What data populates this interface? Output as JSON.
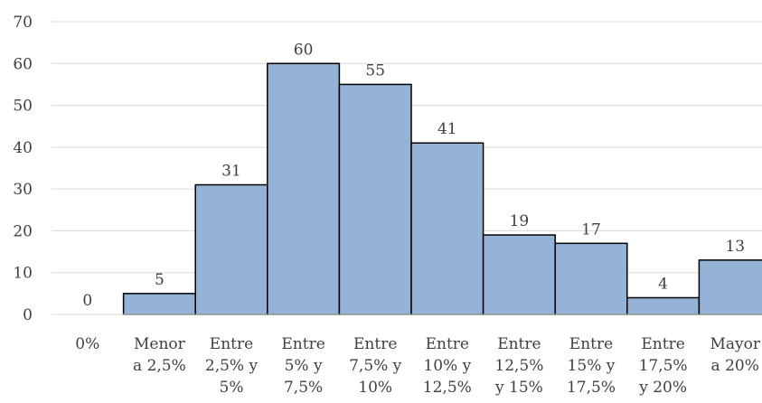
{
  "chart_data": {
    "type": "bar",
    "title": "",
    "xlabel": "",
    "ylabel": "",
    "ylim": [
      0,
      70
    ],
    "yticks": [
      0,
      10,
      20,
      30,
      40,
      50,
      60,
      70
    ],
    "grid": true,
    "legend": "none",
    "bar_color": "#95b3d7",
    "bar_border_color": "#000000",
    "categories": [
      [
        "0%"
      ],
      [
        "Menor",
        "a 2,5%"
      ],
      [
        "Entre",
        "2,5% y",
        "5%"
      ],
      [
        "Entre",
        "5% y",
        "7,5%"
      ],
      [
        "Entre",
        "7,5% y",
        "10%"
      ],
      [
        "Entre",
        "10% y",
        "12,5%"
      ],
      [
        "Entre",
        "12,5%",
        "y 15%"
      ],
      [
        "Entre",
        "15% y",
        "17,5%"
      ],
      [
        "Entre",
        "17,5%",
        "y 20%"
      ],
      [
        "Mayor",
        "a 20%"
      ]
    ],
    "values": [
      0,
      5,
      31,
      60,
      55,
      41,
      19,
      17,
      4,
      13
    ]
  }
}
